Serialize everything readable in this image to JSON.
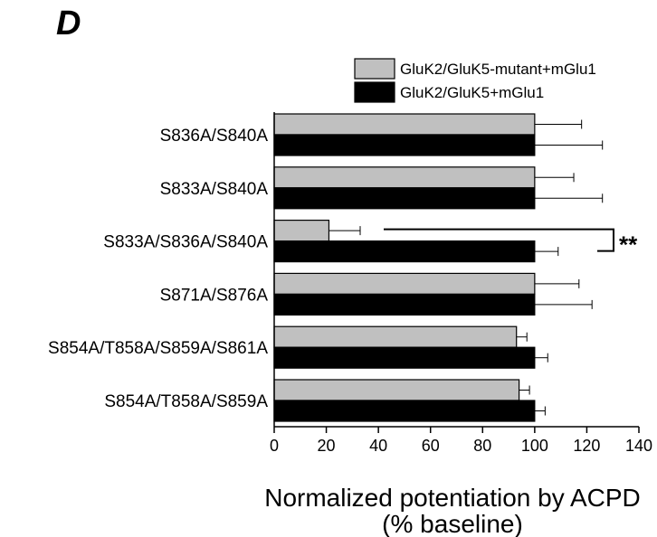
{
  "panel_label": "D",
  "chart_data": {
    "type": "bar",
    "orientation": "horizontal",
    "categories": [
      "S836A/S840A",
      "S833A/S840A",
      "S833A/S836A/S840A",
      "S871A/S876A",
      "S854A/T858A/S859A/S861A",
      "S854A/T858A/S859A"
    ],
    "series": [
      {
        "name": "GluK2/GluK5-mutant+mGlu1",
        "color": "#c0c0c0",
        "values": [
          100,
          100,
          21,
          100,
          93,
          94
        ],
        "errors": [
          18,
          15,
          12,
          17,
          4,
          4
        ]
      },
      {
        "name": "GluK2/GluK5+mGlu1",
        "color": "#000000",
        "values": [
          100,
          100,
          100,
          100,
          100,
          100
        ],
        "errors": [
          26,
          26,
          9,
          22,
          5,
          4
        ]
      }
    ],
    "xlabel": "Normalized potentiation by ACPD",
    "xlabel2": "(% baseline)",
    "xlim": [
      0,
      140
    ],
    "xticks": [
      "0",
      "20",
      "40",
      "60",
      "80",
      "100",
      "120",
      "140"
    ],
    "xtick_values": [
      0,
      20,
      40,
      60,
      80,
      100,
      120,
      140
    ],
    "legend_position": "top-right",
    "grid": false,
    "annotation": {
      "text": "**",
      "category_index": 2
    }
  }
}
